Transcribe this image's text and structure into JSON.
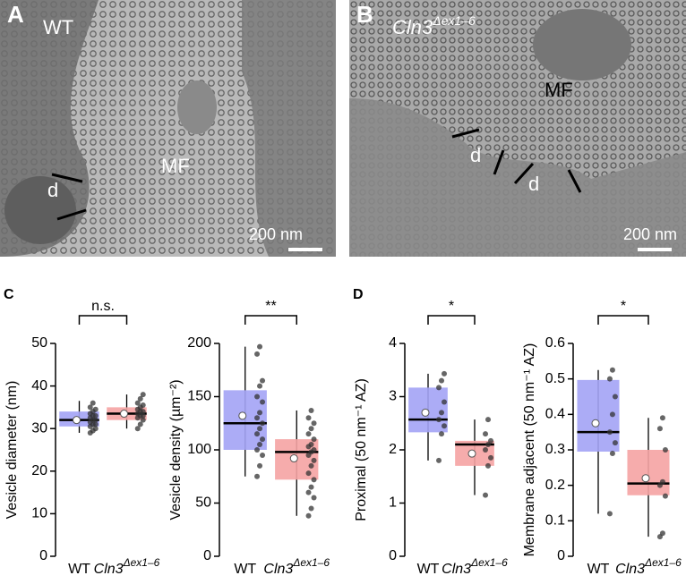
{
  "image_panels": [
    {
      "label": "A",
      "genotype": {
        "name": "WT"
      },
      "annotations": [
        "MF",
        "d"
      ],
      "scale": "200 nm"
    },
    {
      "label": "B",
      "genotype": {
        "name": "Cln3",
        "superscript": "Δex1–6"
      },
      "annotations": [
        "MF",
        "d",
        "d"
      ],
      "scale": "200 nm"
    }
  ],
  "chart_data": [
    {
      "type": "box",
      "panel": "C",
      "ylabel": "Vesicle diameter (nm)",
      "annotation": "n.s.",
      "categories": [
        {
          "name": "WT"
        },
        {
          "name": "Cln3",
          "superscript": "Δex1–6"
        }
      ],
      "ylim": [
        0,
        50
      ],
      "yticks": [
        0,
        10,
        20,
        30,
        40,
        50
      ],
      "boxes": [
        {
          "color": "#a3a3f5",
          "low": 29,
          "q1": 30.5,
          "median": 32,
          "q3": 34,
          "high": 36.5,
          "mean": 32,
          "points": [
            29,
            29.5,
            30,
            30.5,
            31,
            31,
            31.5,
            32,
            32,
            32.5,
            33,
            33,
            33.5,
            34,
            34.5,
            35,
            36
          ]
        },
        {
          "color": "#f5a3a3",
          "low": 30,
          "q1": 32,
          "median": 33.5,
          "q3": 35,
          "high": 38,
          "mean": 33.5,
          "points": [
            30,
            31,
            32,
            32.5,
            33,
            33,
            33.5,
            34,
            34,
            34.5,
            35,
            35.5,
            36,
            37,
            38
          ]
        }
      ]
    },
    {
      "type": "box",
      "ylabel": "Vesicle density (µm⁻²)",
      "annotation": "**",
      "categories": [
        {
          "name": "WT"
        },
        {
          "name": "Cln3",
          "superscript": "Δex1–6"
        }
      ],
      "ylim": [
        0,
        200
      ],
      "yticks": [
        0,
        50,
        100,
        150,
        200
      ],
      "boxes": [
        {
          "color": "#a3a3f5",
          "low": 75,
          "q1": 100,
          "median": 125,
          "q3": 156,
          "high": 197,
          "mean": 132,
          "points": [
            75,
            85,
            95,
            100,
            105,
            110,
            115,
            120,
            125,
            130,
            135,
            145,
            150,
            160,
            165,
            190,
            197
          ]
        },
        {
          "color": "#f5a3a3",
          "low": 38,
          "q1": 72,
          "median": 98,
          "q3": 110,
          "high": 137,
          "mean": 92,
          "points": [
            38,
            45,
            55,
            60,
            65,
            72,
            78,
            85,
            90,
            95,
            98,
            100,
            103,
            105,
            110,
            115,
            120,
            125,
            130,
            137
          ]
        }
      ]
    },
    {
      "type": "box",
      "panel": "D",
      "ylabel": "Proximal (50 nm⁻¹ AZ)",
      "annotation": "*",
      "categories": [
        {
          "name": "WT"
        },
        {
          "name": "Cln3",
          "superscript": "Δex1–6"
        }
      ],
      "ylim": [
        0,
        4
      ],
      "yticks": [
        0,
        1,
        2,
        3,
        4
      ],
      "boxes": [
        {
          "color": "#a3a3f5",
          "low": 1.8,
          "q1": 2.33,
          "median": 2.57,
          "q3": 3.17,
          "high": 3.43,
          "mean": 2.7,
          "points": [
            1.8,
            2.3,
            2.45,
            2.57,
            2.7,
            2.9,
            3.17,
            3.3,
            3.43
          ]
        },
        {
          "color": "#f5a3a3",
          "low": 1.15,
          "q1": 1.7,
          "median": 2.1,
          "q3": 2.17,
          "high": 2.57,
          "mean": 1.93,
          "points": [
            1.15,
            1.7,
            1.85,
            2.0,
            2.1,
            2.17,
            2.3,
            2.57
          ]
        }
      ]
    },
    {
      "type": "box",
      "ylabel": "Membrane adjacent (50 nm⁻¹ AZ)",
      "annotation": "*",
      "categories": [
        {
          "name": "WT"
        },
        {
          "name": "Cln3",
          "superscript": "Δex1–6"
        }
      ],
      "ylim": [
        0,
        0.6
      ],
      "yticks": [
        0,
        0.1,
        0.2,
        0.3,
        0.4,
        0.5,
        0.6
      ],
      "boxes": [
        {
          "color": "#a3a3f5",
          "low": 0.12,
          "q1": 0.295,
          "median": 0.35,
          "q3": 0.497,
          "high": 0.525,
          "mean": 0.375,
          "points": [
            0.12,
            0.29,
            0.32,
            0.35,
            0.4,
            0.45,
            0.5,
            0.525
          ]
        },
        {
          "color": "#f5a3a3",
          "low": 0.055,
          "q1": 0.172,
          "median": 0.205,
          "q3": 0.3,
          "high": 0.39,
          "mean": 0.22,
          "points": [
            0.055,
            0.065,
            0.17,
            0.2,
            0.21,
            0.3,
            0.36,
            0.39
          ]
        }
      ]
    }
  ]
}
